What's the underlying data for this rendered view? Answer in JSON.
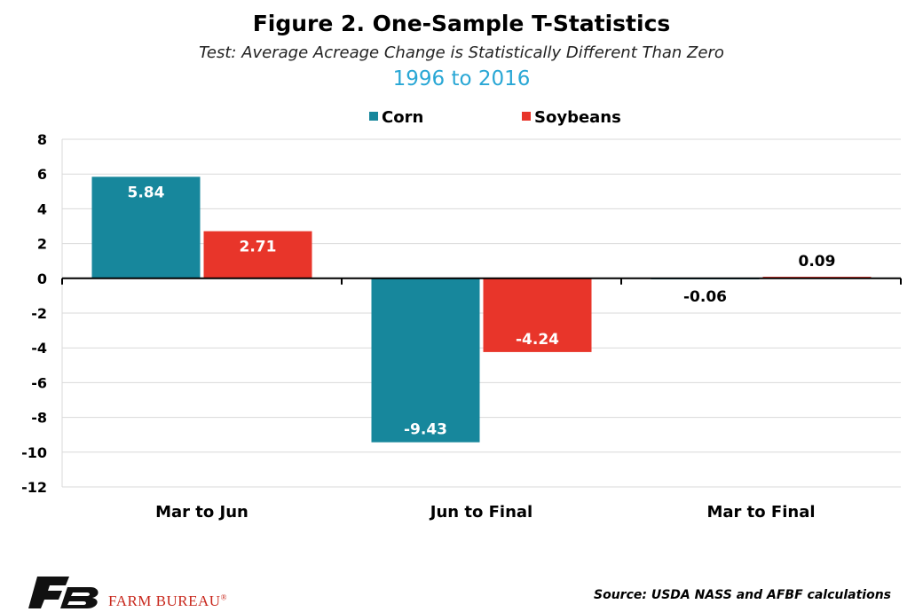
{
  "colors": {
    "corn": "#17879c",
    "soybeans": "#e8352a",
    "years": "#29a7d5",
    "logo_red": "#c8281d"
  },
  "chart_data": {
    "type": "bar",
    "title": "Figure 2. One-Sample T-Statistics",
    "subtitle": "Test: Average Acreage Change is Statistically Different Than Zero",
    "period": "1996 to 2016",
    "categories": [
      "Mar to Jun",
      "Jun to Final",
      "Mar to Final"
    ],
    "series": [
      {
        "name": "Corn",
        "values": [
          5.84,
          -9.43,
          -0.06
        ]
      },
      {
        "name": "Soybeans",
        "values": [
          2.71,
          -4.24,
          0.09
        ]
      }
    ],
    "data_labels": [
      [
        "5.84",
        "-9.43",
        "-0.06"
      ],
      [
        "2.71",
        "-4.24",
        "0.09"
      ]
    ],
    "yticks": [
      "8",
      "6",
      "4",
      "2",
      "0",
      "-2",
      "-4",
      "-6",
      "-8",
      "-10",
      "-12"
    ],
    "ylim": [
      -12,
      8
    ],
    "grid": true,
    "legend_position": "top"
  },
  "footer": {
    "logo_text": "FARM BUREAU",
    "logo_mark": "®",
    "source": "Source: USDA NASS and AFBF calculations"
  }
}
